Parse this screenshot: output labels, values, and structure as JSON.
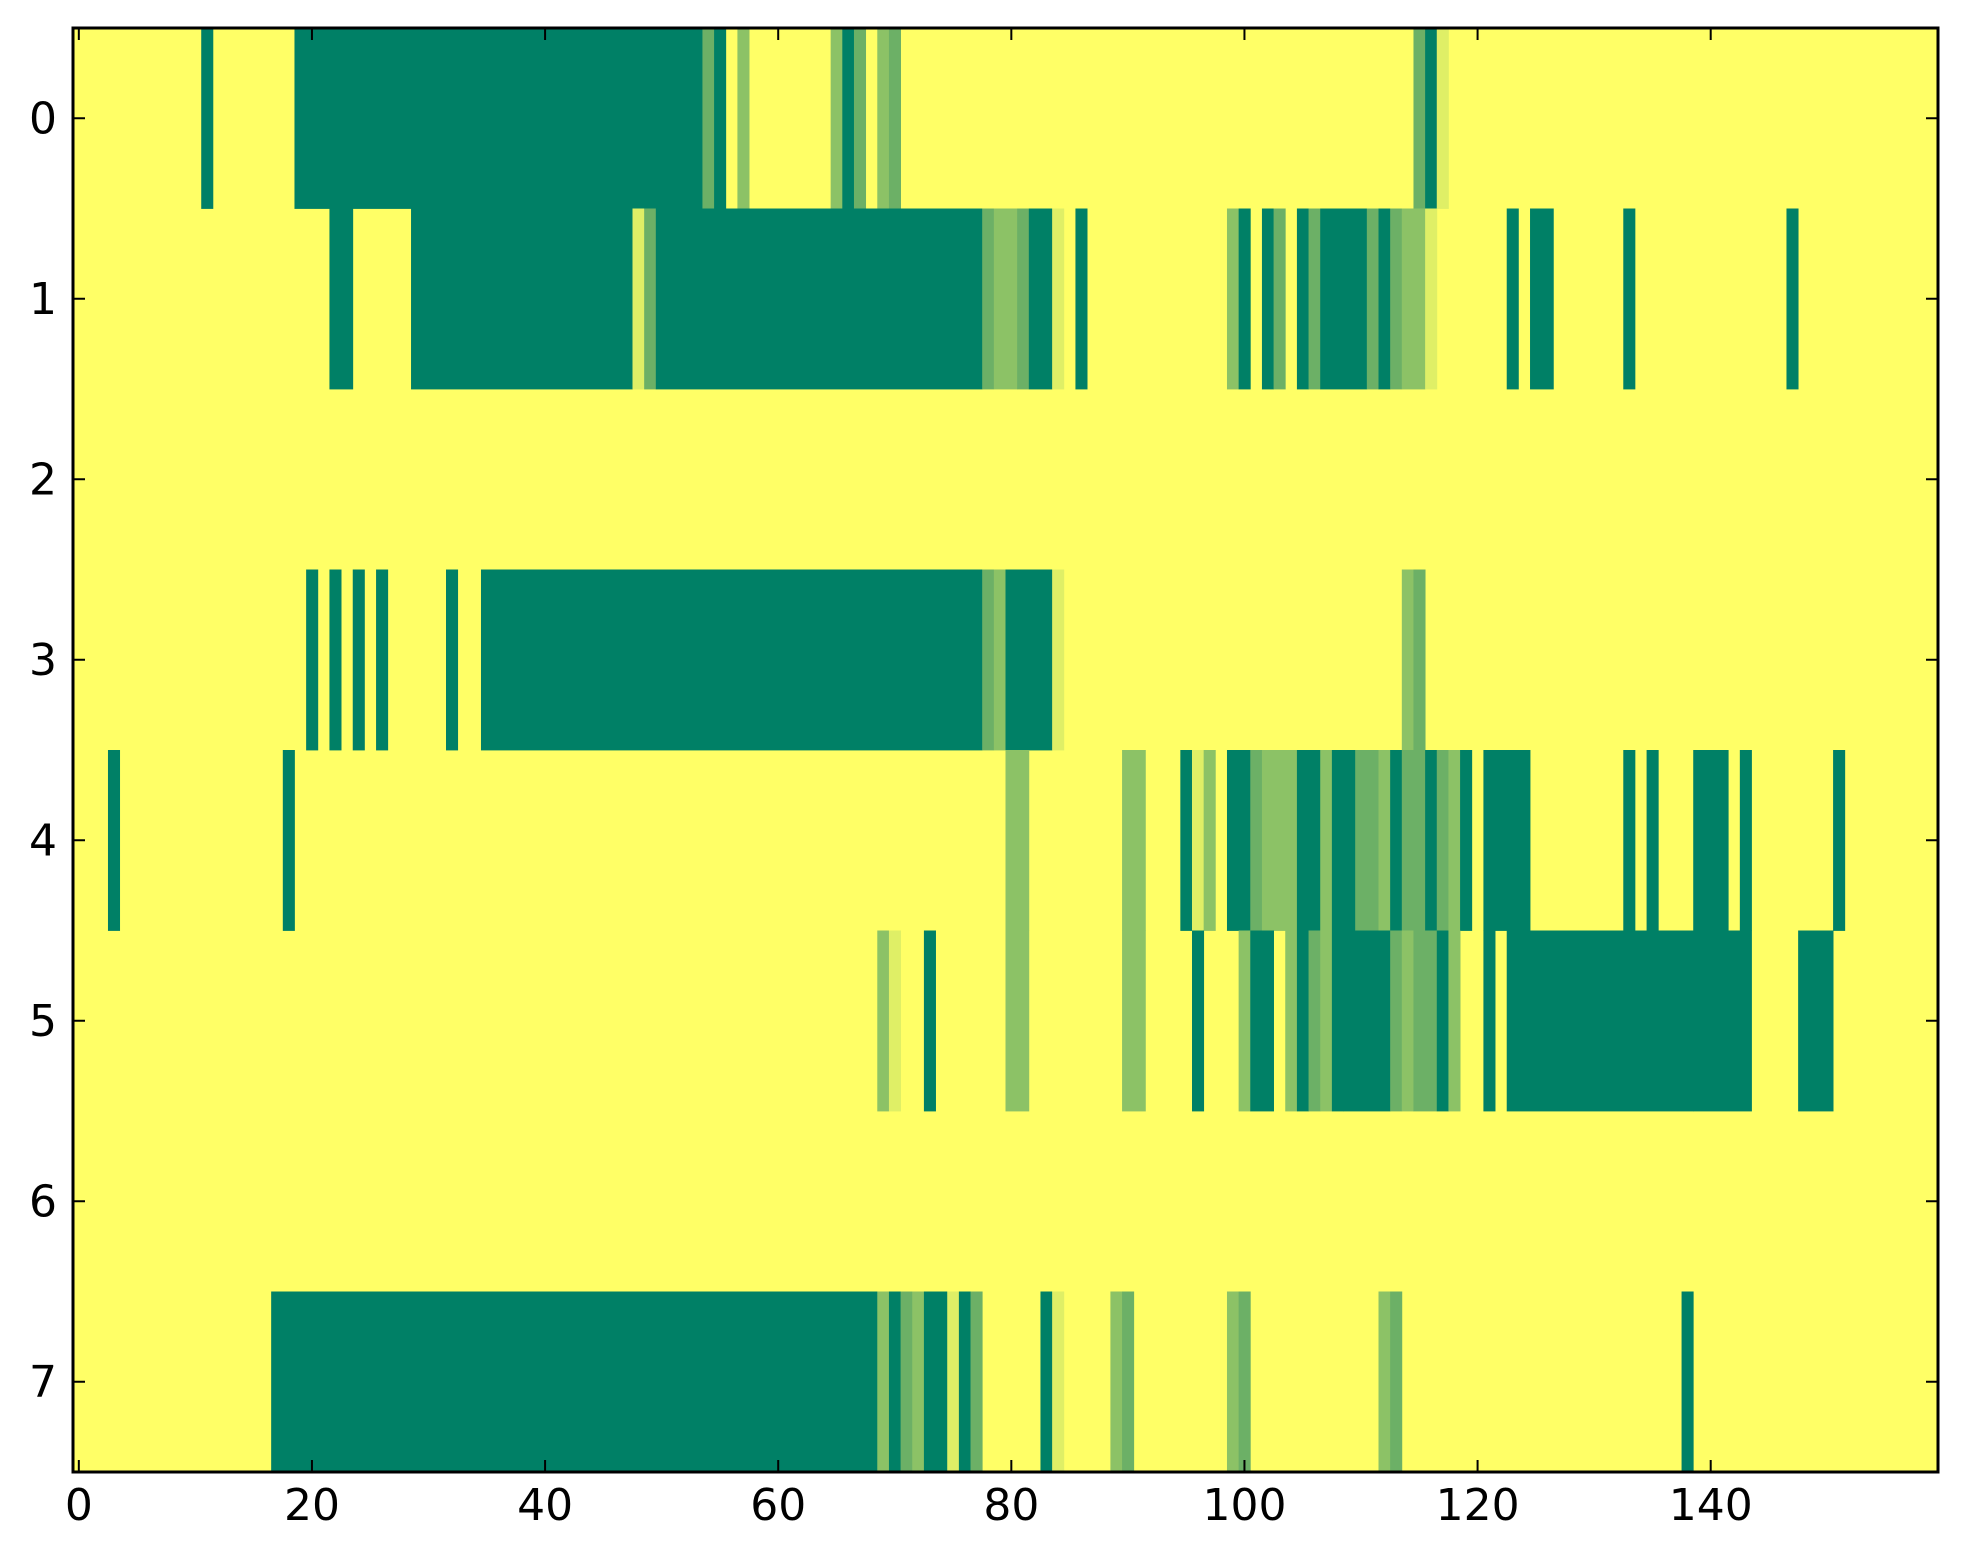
{
  "chart_data": {
    "type": "heatmap",
    "title": "",
    "xlabel": "",
    "ylabel": "",
    "xlim": [
      -0.5,
      159.5
    ],
    "ylim": [
      7.5,
      -0.5
    ],
    "grid": false,
    "xticks": [
      0,
      20,
      40,
      60,
      80,
      100,
      120,
      140
    ],
    "xtick_labels": [
      "0",
      "20",
      "40",
      "60",
      "80",
      "100",
      "120",
      "140"
    ],
    "yticks": [
      0,
      1,
      2,
      3,
      4,
      5,
      6,
      7
    ],
    "ytick_labels": [
      "0",
      "1",
      "2",
      "3",
      "4",
      "5",
      "6",
      "7"
    ],
    "n_cols": 160,
    "n_rows": 8,
    "background_level": 0,
    "level_colors": [
      "#ffff66",
      "#dfef66",
      "#8cc266",
      "#6cb066",
      "#008066"
    ],
    "rows": [
      {
        "row": 0,
        "segments": [
          [
            11,
            11,
            4
          ],
          [
            19,
            53,
            4
          ],
          [
            54,
            54,
            3
          ],
          [
            55,
            55,
            4
          ],
          [
            57,
            57,
            2
          ],
          [
            65,
            65,
            2
          ],
          [
            66,
            66,
            4
          ],
          [
            67,
            67,
            3
          ],
          [
            69,
            69,
            2
          ],
          [
            70,
            70,
            3
          ],
          [
            115,
            115,
            3
          ],
          [
            116,
            116,
            4
          ],
          [
            117,
            117,
            1
          ]
        ]
      },
      {
        "row": 1,
        "segments": [
          [
            22,
            23,
            4
          ],
          [
            29,
            47,
            4
          ],
          [
            48,
            48,
            1
          ],
          [
            49,
            49,
            3
          ],
          [
            50,
            77,
            4
          ],
          [
            78,
            78,
            3
          ],
          [
            79,
            80,
            2
          ],
          [
            81,
            81,
            3
          ],
          [
            82,
            83,
            4
          ],
          [
            84,
            84,
            1
          ],
          [
            86,
            86,
            4
          ],
          [
            99,
            99,
            2
          ],
          [
            100,
            100,
            4
          ],
          [
            102,
            102,
            4
          ],
          [
            103,
            103,
            3
          ],
          [
            105,
            105,
            4
          ],
          [
            106,
            106,
            3
          ],
          [
            107,
            110,
            4
          ],
          [
            111,
            111,
            3
          ],
          [
            112,
            112,
            4
          ],
          [
            113,
            113,
            3
          ],
          [
            114,
            115,
            2
          ],
          [
            116,
            116,
            1
          ],
          [
            123,
            123,
            4
          ],
          [
            125,
            126,
            4
          ],
          [
            133,
            133,
            4
          ],
          [
            147,
            147,
            4
          ]
        ]
      },
      {
        "row": 2,
        "segments": []
      },
      {
        "row": 3,
        "segments": [
          [
            20,
            20,
            4
          ],
          [
            22,
            22,
            4
          ],
          [
            24,
            24,
            4
          ],
          [
            26,
            26,
            4
          ],
          [
            32,
            32,
            4
          ],
          [
            35,
            77,
            4
          ],
          [
            78,
            78,
            3
          ],
          [
            79,
            79,
            2
          ],
          [
            80,
            83,
            4
          ],
          [
            84,
            84,
            1
          ],
          [
            114,
            114,
            2
          ],
          [
            115,
            115,
            3
          ]
        ]
      },
      {
        "row": 4,
        "segments": [
          [
            3,
            3,
            4
          ],
          [
            18,
            18,
            4
          ],
          [
            80,
            81,
            2
          ],
          [
            90,
            91,
            2
          ],
          [
            95,
            95,
            4
          ],
          [
            96,
            96,
            1
          ],
          [
            97,
            97,
            2
          ],
          [
            99,
            100,
            4
          ],
          [
            101,
            101,
            3
          ],
          [
            102,
            104,
            2
          ],
          [
            105,
            106,
            4
          ],
          [
            107,
            107,
            2
          ],
          [
            108,
            109,
            4
          ],
          [
            110,
            111,
            3
          ],
          [
            112,
            112,
            2
          ],
          [
            113,
            113,
            4
          ],
          [
            114,
            115,
            3
          ],
          [
            116,
            116,
            4
          ],
          [
            117,
            117,
            3
          ],
          [
            118,
            118,
            2
          ],
          [
            119,
            119,
            4
          ],
          [
            121,
            124,
            4
          ],
          [
            133,
            133,
            4
          ],
          [
            135,
            135,
            4
          ],
          [
            139,
            141,
            4
          ],
          [
            143,
            143,
            4
          ],
          [
            151,
            151,
            4
          ]
        ]
      },
      {
        "row": 5,
        "segments": [
          [
            69,
            69,
            2
          ],
          [
            70,
            70,
            1
          ],
          [
            73,
            73,
            4
          ],
          [
            80,
            81,
            2
          ],
          [
            90,
            91,
            2
          ],
          [
            96,
            96,
            4
          ],
          [
            100,
            100,
            2
          ],
          [
            101,
            102,
            4
          ],
          [
            104,
            104,
            2
          ],
          [
            105,
            105,
            4
          ],
          [
            106,
            106,
            3
          ],
          [
            107,
            107,
            2
          ],
          [
            108,
            108,
            4
          ],
          [
            109,
            112,
            4
          ],
          [
            113,
            113,
            3
          ],
          [
            114,
            114,
            2
          ],
          [
            115,
            116,
            3
          ],
          [
            117,
            117,
            4
          ],
          [
            118,
            118,
            2
          ],
          [
            121,
            121,
            4
          ],
          [
            123,
            138,
            4
          ],
          [
            139,
            143,
            4
          ],
          [
            148,
            150,
            4
          ]
        ]
      },
      {
        "row": 6,
        "segments": []
      },
      {
        "row": 7,
        "segments": [
          [
            17,
            68,
            4
          ],
          [
            69,
            69,
            2
          ],
          [
            70,
            70,
            4
          ],
          [
            71,
            71,
            3
          ],
          [
            72,
            72,
            2
          ],
          [
            73,
            74,
            4
          ],
          [
            75,
            75,
            1
          ],
          [
            76,
            76,
            4
          ],
          [
            77,
            77,
            3
          ],
          [
            83,
            83,
            4
          ],
          [
            84,
            84,
            1
          ],
          [
            89,
            89,
            2
          ],
          [
            90,
            90,
            3
          ],
          [
            99,
            99,
            2
          ],
          [
            100,
            100,
            3
          ],
          [
            112,
            112,
            2
          ],
          [
            113,
            113,
            3
          ],
          [
            138,
            138,
            4
          ]
        ]
      }
    ]
  }
}
